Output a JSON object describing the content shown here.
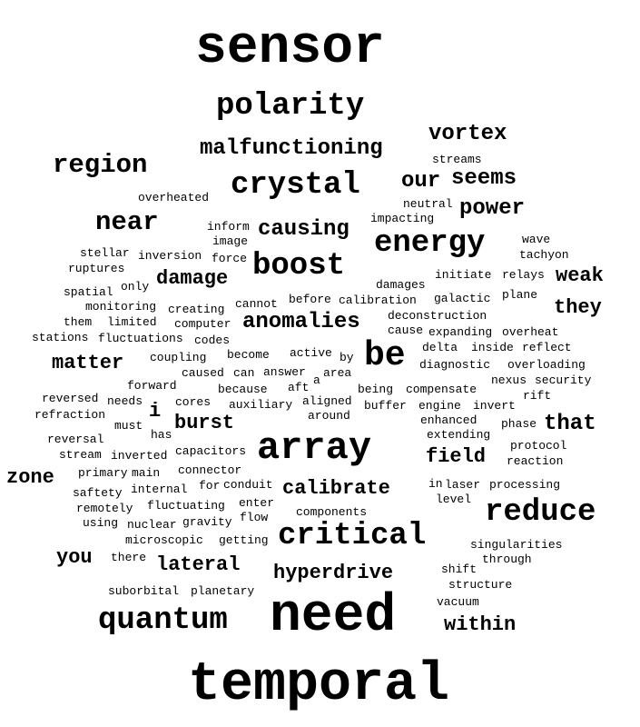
{
  "word_cloud": {
    "words": [
      "sensor",
      "polarity",
      "vortex",
      "malfunctioning",
      "streams",
      "region",
      "crystal",
      "our",
      "seems",
      "overheated",
      "neutral",
      "power",
      "near",
      "inform",
      "causing",
      "impacting",
      "energy",
      "image",
      "wave",
      "stellar",
      "inversion",
      "force",
      "tachyon",
      "boost",
      "ruptures",
      "weak",
      "damage",
      "damages",
      "initiate",
      "relays",
      "spatial",
      "only",
      "plane",
      "galactic",
      "they",
      "cannot",
      "before",
      "calibration",
      "monitoring",
      "creating",
      "deconstruction",
      "anomalies",
      "them",
      "limited",
      "computer",
      "cause",
      "expanding",
      "overheat",
      "stations",
      "fluctuations",
      "codes",
      "be",
      "delta",
      "inside",
      "reflect",
      "matter",
      "coupling",
      "become",
      "active",
      "by",
      "diagnostic",
      "overloading",
      "caused",
      "can",
      "answer",
      "area",
      "nexus",
      "security",
      "forward",
      "a",
      "aft",
      "because",
      "being",
      "compensate",
      "rift",
      "reversed",
      "needs",
      "cores",
      "auxiliary",
      "aligned",
      "buffer",
      "engine",
      "invert",
      "i",
      "refraction",
      "around",
      "burst",
      "enhanced",
      "phase",
      "that",
      "must",
      "has",
      "array",
      "reversal",
      "extending",
      "protocol",
      "stream",
      "inverted",
      "capacitors",
      "field",
      "reaction",
      "zone",
      "primary",
      "main",
      "connector",
      "in",
      "laser",
      "processing",
      "saftety",
      "internal",
      "for",
      "conduit",
      "calibrate",
      "level",
      "remotely",
      "fluctuating",
      "enter",
      "reduce",
      "components",
      "using",
      "nuclear",
      "gravity",
      "flow",
      "microscopic",
      "getting",
      "critical",
      "singularities",
      "you",
      "there",
      "lateral",
      "through",
      "shift",
      "hyperdrive",
      "structure",
      "suborbital",
      "planetary",
      "vacuum",
      "quantum",
      "need",
      "within",
      "temporal"
    ]
  }
}
